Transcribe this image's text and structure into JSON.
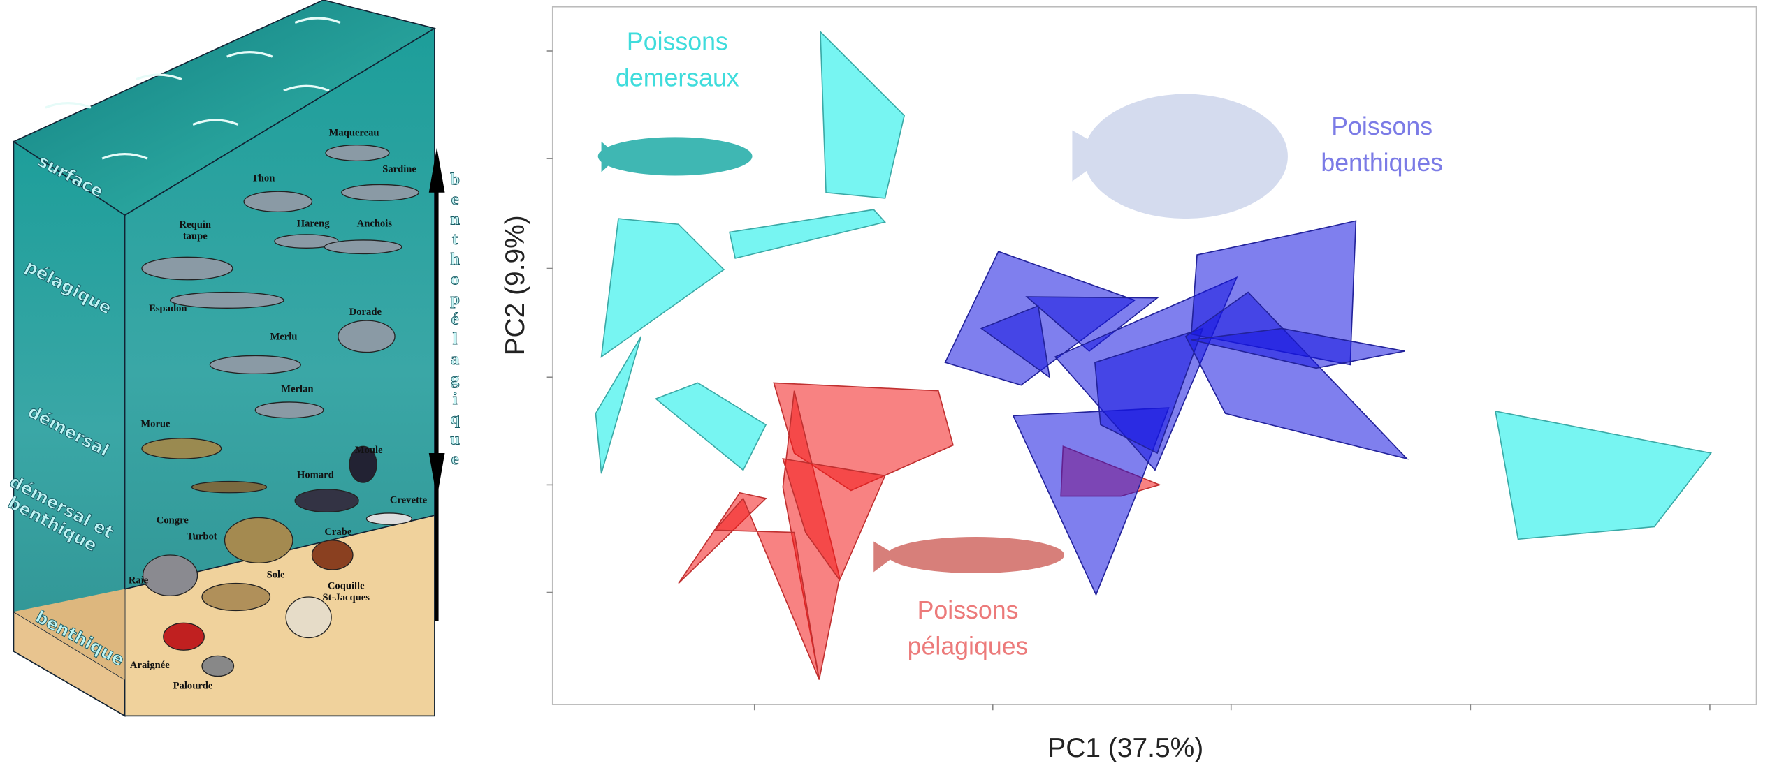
{
  "left_panel": {
    "layers": [
      [
        "surface"
      ],
      [
        "pélagique"
      ],
      [
        "démersal"
      ],
      [
        "démersal et",
        "benthique"
      ],
      [
        "benthique"
      ]
    ],
    "vertical_label": "benthopélagique",
    "species": [
      [
        "Maquereau"
      ],
      [
        "Thon"
      ],
      [
        "Sardine"
      ],
      [
        "Requin",
        "taupe"
      ],
      [
        "Hareng"
      ],
      [
        "Anchois"
      ],
      [
        "Espadon"
      ],
      [
        "Dorade"
      ],
      [
        "Merlu"
      ],
      [
        "Merlan"
      ],
      [
        "Morue"
      ],
      [
        "Moule"
      ],
      [
        "Homard"
      ],
      [
        "Crevette"
      ],
      [
        "Congre"
      ],
      [
        "Turbot"
      ],
      [
        "Crabe"
      ],
      [
        "Raie"
      ],
      [
        "Sole"
      ],
      [
        "Coquille",
        "St-Jacques"
      ],
      [
        "Araignée"
      ],
      [
        "Palourde"
      ]
    ]
  },
  "plot": {
    "x_label": "PC1 (37.5%)",
    "y_label": "PC2 (9.9%)",
    "groups": [
      {
        "lines": [
          "Poissons",
          "demersaux"
        ],
        "color": "#3fdcdc"
      },
      {
        "lines": [
          "Poissons",
          "benthiques"
        ],
        "color": "#7b7be6"
      },
      {
        "lines": [
          "Poissons",
          "pélagiques"
        ],
        "color": "#ec7a7a"
      }
    ]
  }
}
